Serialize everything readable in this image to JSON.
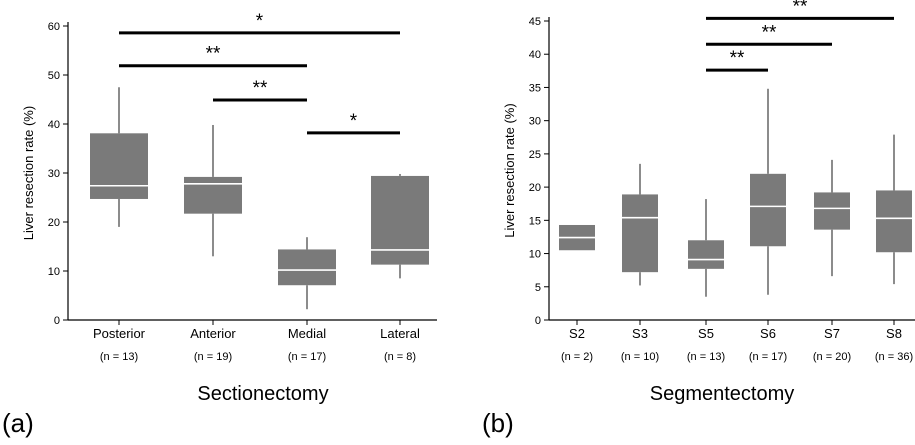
{
  "chart_data": [
    {
      "type": "box",
      "panel_label": "(a)",
      "xlabel": "Sectionectomy",
      "ylabel": "Liver resection rate (%)",
      "ylim": [
        0,
        60
      ],
      "yticks": [
        0,
        10,
        20,
        30,
        40,
        50,
        60
      ],
      "grid": false,
      "colors": {
        "box": "#7a7a7a",
        "median": "#ffffff",
        "whisker": "#8c8c8c",
        "sig_line": "#000000"
      },
      "categories": [
        "Posterior",
        "Anterior",
        "Medial",
        "Lateral"
      ],
      "counts": [
        "(n = 13)",
        "(n = 19)",
        "(n = 17)",
        "(n = 8)"
      ],
      "boxes": [
        {
          "whisker_low": 19,
          "q1": 24.7,
          "median": 27.4,
          "q3": 38.1,
          "whisker_high": 47.5
        },
        {
          "whisker_low": 13,
          "q1": 21.7,
          "median": 27.8,
          "q3": 29.2,
          "whisker_high": 39.8
        },
        {
          "whisker_low": 2.2,
          "q1": 7.1,
          "median": 10.2,
          "q3": 14.4,
          "whisker_high": 16.9
        },
        {
          "whisker_low": 8.5,
          "q1": 11.3,
          "median": 14.3,
          "q3": 29.4,
          "whisker_high": 29.8
        }
      ],
      "significance": [
        {
          "from": 0,
          "to": 3,
          "y": 58.6,
          "label": "*"
        },
        {
          "from": 0,
          "to": 2,
          "y": 51.9,
          "label": "**"
        },
        {
          "from": 1,
          "to": 2,
          "y": 44.9,
          "label": "**"
        },
        {
          "from": 2,
          "to": 3,
          "y": 38.2,
          "label": "*"
        }
      ]
    },
    {
      "type": "box",
      "panel_label": "(b)",
      "xlabel": "Segmentectomy",
      "ylabel": "Liver resection rate (%)",
      "ylim": [
        0,
        45
      ],
      "yticks": [
        0,
        5,
        10,
        15,
        20,
        25,
        30,
        35,
        40,
        45
      ],
      "grid": false,
      "colors": {
        "box": "#7a7a7a",
        "median": "#ffffff",
        "whisker": "#8c8c8c",
        "sig_line": "#000000"
      },
      "categories": [
        "S2",
        "S3",
        "S5",
        "S6",
        "S7",
        "S8"
      ],
      "counts": [
        "(n = 2)",
        "(n = 10)",
        "(n = 13)",
        "(n = 17)",
        "(n = 20)",
        "(n = 36)"
      ],
      "boxes": [
        {
          "whisker_low": 10.5,
          "q1": 10.5,
          "median": 12.4,
          "q3": 14.3,
          "whisker_high": 14.3
        },
        {
          "whisker_low": 5.2,
          "q1": 7.2,
          "median": 15.4,
          "q3": 18.9,
          "whisker_high": 23.5
        },
        {
          "whisker_low": 3.5,
          "q1": 7.7,
          "median": 9.1,
          "q3": 12,
          "whisker_high": 18.2
        },
        {
          "whisker_low": 3.8,
          "q1": 11.1,
          "median": 17.1,
          "q3": 22,
          "whisker_high": 34.8
        },
        {
          "whisker_low": 6.6,
          "q1": 13.6,
          "median": 16.8,
          "q3": 19.2,
          "whisker_high": 24.1
        },
        {
          "whisker_low": 5.4,
          "q1": 10.2,
          "median": 15.3,
          "q3": 19.5,
          "whisker_high": 27.9
        }
      ],
      "significance": [
        {
          "from": 2,
          "to": 5,
          "y": 45.4,
          "label": "**"
        },
        {
          "from": 2,
          "to": 4,
          "y": 41.5,
          "label": "**"
        },
        {
          "from": 2,
          "to": 3,
          "y": 37.6,
          "label": "**"
        }
      ]
    }
  ]
}
